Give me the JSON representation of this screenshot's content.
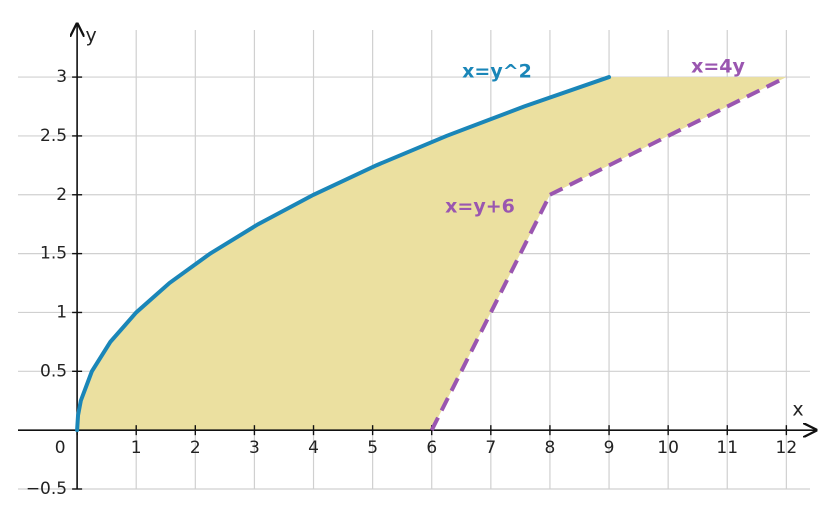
{
  "chart_data": {
    "type": "line",
    "x_label": "x",
    "y_label": "y",
    "xlim": [
      -1,
      12.4
    ],
    "ylim": [
      -0.5,
      3.4
    ],
    "xticks": [
      0,
      1,
      2,
      3,
      4,
      5,
      6,
      7,
      8,
      9,
      10,
      11,
      12
    ],
    "yticks": [
      {
        "value": -0.5,
        "label": "−0.5"
      },
      0.5,
      1,
      1.5,
      2,
      2.5,
      3
    ],
    "grid": true,
    "fill_color": "#ebe0a0",
    "series": [
      {
        "name": "x=y^2",
        "color": "#1a86b8",
        "dashed": false,
        "x": [
          0,
          0.015625,
          0.0625,
          0.25,
          0.5625,
          1,
          1.5625,
          2.25,
          3.0625,
          4,
          5.0625,
          6.25,
          7.5625,
          9
        ],
        "values": [
          0,
          0.125,
          0.25,
          0.5,
          0.75,
          1,
          1.25,
          1.5,
          1.75,
          2,
          2.25,
          2.5,
          2.75,
          3
        ]
      },
      {
        "name": "x=y+6",
        "color": "#9a56b0",
        "dashed": true,
        "x": [
          6,
          8
        ],
        "values": [
          0,
          2
        ]
      },
      {
        "name": "x=4y",
        "color": "#9a56b0",
        "dashed": true,
        "x": [
          8,
          12
        ],
        "values": [
          2,
          3
        ]
      }
    ]
  }
}
